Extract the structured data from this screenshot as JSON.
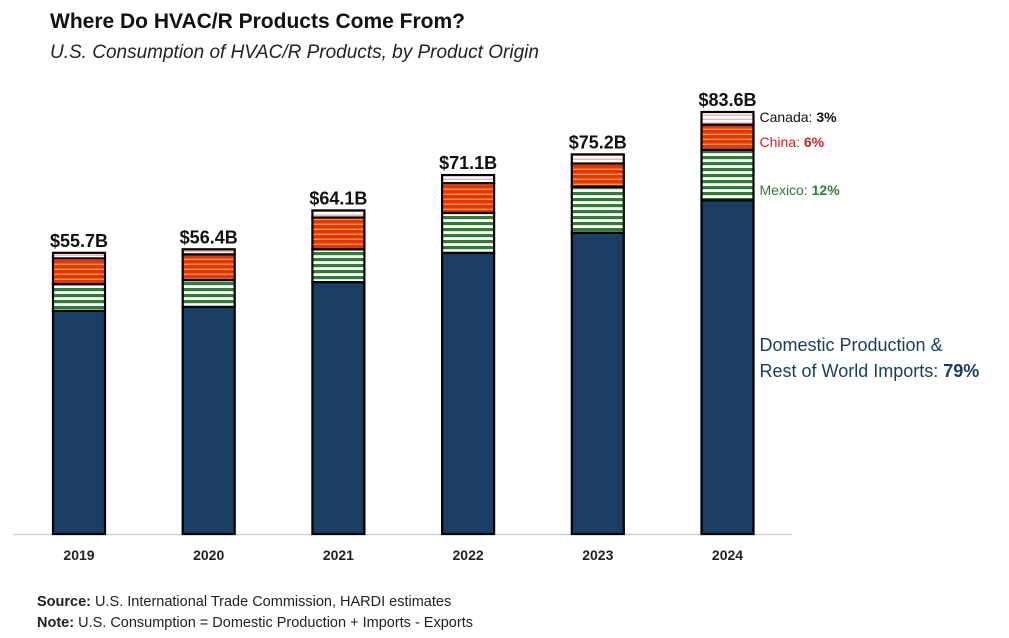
{
  "chart_data": {
    "type": "bar",
    "stacked": true,
    "title": "Where Do HVAC/R Products Come From?",
    "subtitle": "U.S. Consumption of HVAC/R Products, by Product Origin",
    "xlabel": "",
    "ylabel": "",
    "ylim": [
      0,
      83.6
    ],
    "grid": false,
    "categories": [
      "2019",
      "2020",
      "2021",
      "2022",
      "2023",
      "2024"
    ],
    "totals_labels": [
      "$55.7B",
      "$56.4B",
      "$64.1B",
      "$71.1B",
      "$75.2B",
      "$83.6B"
    ],
    "totals": [
      55.7,
      56.4,
      64.1,
      71.1,
      75.2,
      83.6
    ],
    "series": [
      {
        "name": "Domestic Production & Rest of World Imports",
        "color": "#1a3d63",
        "pattern": "solid",
        "values": [
          44.2,
          45.0,
          49.9,
          55.7,
          59.7,
          66.1
        ]
      },
      {
        "name": "Mexico",
        "color": "#2e7d32",
        "pattern": "green-stripes",
        "values": [
          5.3,
          5.3,
          6.5,
          7.9,
          9.1,
          10.0
        ]
      },
      {
        "name": "China",
        "color": "#e8311a",
        "pattern": "red-stripes",
        "values": [
          5.1,
          5.1,
          6.3,
          5.9,
          4.6,
          5.0
        ]
      },
      {
        "name": "Canada",
        "color": "#f4c7c7",
        "pattern": "pink-stripes",
        "values": [
          1.1,
          1.0,
          1.4,
          1.6,
          1.8,
          2.5
        ]
      }
    ],
    "annotations": [
      {
        "series": "Canada",
        "label": "Canada: ",
        "value": "3%",
        "color": "#111111"
      },
      {
        "series": "China",
        "label": "China: ",
        "value": "6%",
        "color": "#d32020"
      },
      {
        "series": "Mexico",
        "label": "Mexico: ",
        "value": "12%",
        "color": "#2e7d32"
      },
      {
        "series": "Domestic",
        "label_line1": "Domestic Production &",
        "label_line2": "Rest of World Imports: ",
        "value": "79%",
        "color": "#1a3d63"
      }
    ]
  },
  "footer": {
    "source_label": "Source:",
    "source_text": " U.S. International Trade Commission, HARDI estimates",
    "note_label": "Note:",
    "note_text": " U.S. Consumption = Domestic Production + Imports - Exports"
  }
}
